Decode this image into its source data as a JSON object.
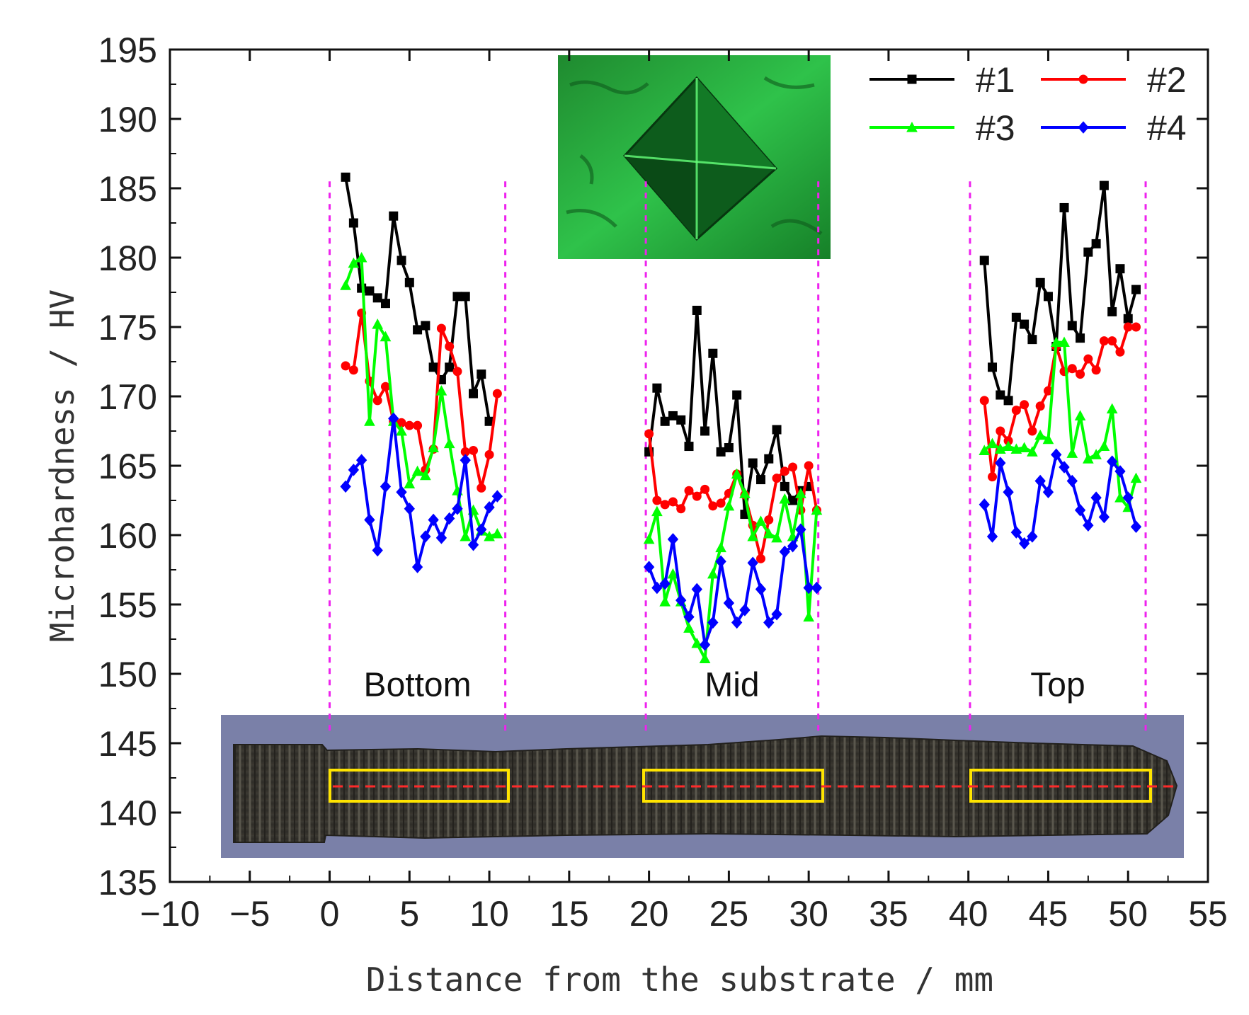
{
  "chart_data": {
    "type": "line",
    "xlabel": "Distance from the substrate / mm",
    "ylabel": "Microhardness / HV",
    "xlim": [
      -10,
      55
    ],
    "ylim": [
      135,
      195
    ],
    "xticks": [
      -10,
      -5,
      0,
      5,
      10,
      15,
      20,
      25,
      30,
      35,
      40,
      45,
      50,
      55
    ],
    "yticks": [
      135,
      140,
      145,
      150,
      155,
      160,
      165,
      170,
      175,
      180,
      185,
      190,
      195
    ],
    "legend_position": "top-right",
    "regions": [
      {
        "label": "Bottom",
        "x_start": 0,
        "x_end": 11
      },
      {
        "label": "Mid",
        "x_start": 19.8,
        "x_end": 30.6
      },
      {
        "label": "Top",
        "x_start": 40.1,
        "x_end": 51.1
      }
    ],
    "series": [
      {
        "name": "#1",
        "color": "#000000",
        "marker": "square",
        "segments": [
          {
            "x": [
              1,
              1.5,
              2,
              2.5,
              3,
              3.5,
              4,
              4.5,
              5,
              5.5,
              6,
              6.5,
              7,
              7.5,
              8,
              8.5,
              9,
              9.5,
              10
            ],
            "y": [
              185.8,
              182.5,
              177.8,
              177.6,
              177.1,
              176.7,
              183,
              179.8,
              178.2,
              174.8,
              175.1,
              172.1,
              171.2,
              172.1,
              177.2,
              177.2,
              170.2,
              171.6,
              168.2
            ]
          },
          {
            "x": [
              20,
              20.5,
              21,
              21.5,
              22,
              22.5,
              23,
              23.5,
              24,
              24.5,
              25,
              25.5,
              26,
              26.5,
              27,
              27.5,
              28,
              28.5,
              29,
              29.5,
              30
            ],
            "y": [
              166,
              170.6,
              168.2,
              168.6,
              168.3,
              166.4,
              176.2,
              167.5,
              173.1,
              166,
              166.3,
              170.1,
              161.5,
              165.2,
              164,
              165.5,
              167.6,
              163.5,
              162.5,
              163.2,
              163.5
            ]
          },
          {
            "x": [
              41,
              41.5,
              42,
              42.5,
              43,
              43.5,
              44,
              44.5,
              45,
              45.5,
              46,
              46.5,
              47,
              47.5,
              48,
              48.5,
              49,
              49.5,
              50,
              50.5
            ],
            "y": [
              179.8,
              172.1,
              170.1,
              169.7,
              175.7,
              175.2,
              174.1,
              178.2,
              177.2,
              173.6,
              183.6,
              175.1,
              174.2,
              180.4,
              181,
              185.2,
              176.1,
              179.2,
              175.6,
              177.7
            ]
          }
        ]
      },
      {
        "name": "#2",
        "color": "#ff0000",
        "marker": "circle",
        "segments": [
          {
            "x": [
              1,
              1.5,
              2,
              2.5,
              3,
              3.5,
              4,
              4.5,
              5,
              5.5,
              6,
              6.5,
              7,
              7.5,
              8,
              8.5,
              9,
              9.5,
              10,
              10.5
            ],
            "y": [
              172.2,
              171.9,
              176,
              171.1,
              169.7,
              170.7,
              168.2,
              168.1,
              167.9,
              167.9,
              164.7,
              166.2,
              174.9,
              173.6,
              171.8,
              166,
              166.1,
              163.4,
              165.8,
              170.2
            ]
          },
          {
            "x": [
              20,
              20.5,
              21,
              21.5,
              22,
              22.5,
              23,
              23.5,
              24,
              24.5,
              25,
              25.5,
              26,
              26.5,
              27,
              27.5,
              28,
              28.5,
              29,
              29.5,
              30,
              30.5
            ],
            "y": [
              167.3,
              162.5,
              162.2,
              162.4,
              161.9,
              163.2,
              162.8,
              163.3,
              162.1,
              162.3,
              163,
              164.4,
              162.9,
              160.7,
              158.3,
              161.1,
              164.1,
              164.6,
              164.9,
              161.8,
              165,
              161.8
            ]
          },
          {
            "x": [
              41,
              41.5,
              42,
              42.5,
              43,
              43.5,
              44,
              44.5,
              45,
              45.5,
              46,
              46.5,
              47,
              47.5,
              48,
              48.5,
              49,
              49.5,
              50,
              50.5
            ],
            "y": [
              169.7,
              164.2,
              167.5,
              166.8,
              169,
              169.4,
              167.5,
              169.3,
              170.4,
              173.6,
              171.8,
              172,
              171.6,
              172.7,
              171.9,
              174,
              174,
              173.2,
              175,
              175
            ]
          }
        ]
      },
      {
        "name": "#3",
        "color": "#00ff00",
        "marker": "triangle",
        "segments": [
          {
            "x": [
              1,
              1.5,
              2,
              2.5,
              3,
              3.5,
              4,
              4.5,
              5,
              5.5,
              6,
              6.5,
              7,
              7.5,
              8,
              8.5,
              9,
              9.5,
              10,
              10.5
            ],
            "y": [
              178,
              179.6,
              180,
              168.2,
              175.2,
              174.3,
              168.2,
              167.5,
              163.7,
              164.6,
              164.3,
              166.3,
              170.4,
              166.6,
              163.2,
              159.9,
              161.8,
              160.3,
              159.9,
              160.1
            ]
          },
          {
            "x": [
              20,
              20.5,
              21,
              21.5,
              22,
              22.5,
              23,
              23.5,
              24,
              24.5,
              25,
              25.5,
              26,
              26.5,
              27,
              27.5,
              28,
              28.5,
              29,
              29.5,
              30,
              30.5
            ],
            "y": [
              159.7,
              161.7,
              155.2,
              157.2,
              155.2,
              153.3,
              152.2,
              151.1,
              157.2,
              159.1,
              162.1,
              164.4,
              163,
              159.9,
              161,
              160.1,
              159.8,
              162.6,
              159.9,
              163,
              154.1,
              161.8
            ]
          },
          {
            "x": [
              41,
              41.5,
              42,
              42.5,
              43,
              43.5,
              44,
              44.5,
              45,
              45.5,
              46,
              46.5,
              47,
              47.5,
              48,
              48.5,
              49,
              49.5,
              50,
              50.5
            ],
            "y": [
              166.1,
              166.6,
              166.2,
              166.4,
              166.2,
              166.3,
              166,
              167.2,
              166.9,
              173.9,
              173.9,
              165.9,
              168.6,
              165.5,
              165.8,
              166.4,
              169.1,
              162.7,
              162,
              164.1
            ]
          }
        ]
      },
      {
        "name": "#4",
        "color": "#0000ff",
        "marker": "diamond",
        "segments": [
          {
            "x": [
              1,
              1.5,
              2,
              2.5,
              3,
              3.5,
              4,
              4.5,
              5,
              5.5,
              6,
              6.5,
              7,
              7.5,
              8,
              8.5,
              9,
              9.5,
              10,
              10.5
            ],
            "y": [
              163.5,
              164.7,
              165.4,
              161.1,
              158.9,
              163.5,
              168.4,
              163.1,
              161.9,
              157.7,
              159.9,
              161.1,
              159.8,
              161.2,
              161.9,
              165.4,
              159.3,
              160.4,
              162,
              162.8
            ]
          },
          {
            "x": [
              20,
              20.5,
              21,
              21.5,
              22,
              22.5,
              23,
              23.5,
              24,
              24.5,
              25,
              25.5,
              26,
              26.5,
              27,
              27.5,
              28,
              28.5,
              29,
              29.5,
              30,
              30.5
            ],
            "y": [
              157.7,
              156.2,
              156.5,
              159.7,
              155.3,
              154.1,
              156.1,
              152.1,
              153.7,
              158.1,
              155.1,
              153.7,
              154.6,
              158,
              156.1,
              153.7,
              154.3,
              158.8,
              159.2,
              160.4,
              156.2,
              156.2
            ]
          },
          {
            "x": [
              41,
              41.5,
              42,
              42.5,
              43,
              43.5,
              44,
              44.5,
              45,
              45.5,
              46,
              46.5,
              47,
              47.5,
              48,
              48.5,
              49,
              49.5,
              50,
              50.5
            ],
            "y": [
              162.2,
              159.9,
              165.2,
              163.1,
              160.2,
              159.4,
              159.9,
              163.9,
              163.1,
              165.8,
              164.9,
              163.9,
              161.8,
              160.7,
              162.7,
              161.3,
              165.3,
              164.6,
              162.7,
              160.6
            ]
          }
        ]
      }
    ]
  }
}
